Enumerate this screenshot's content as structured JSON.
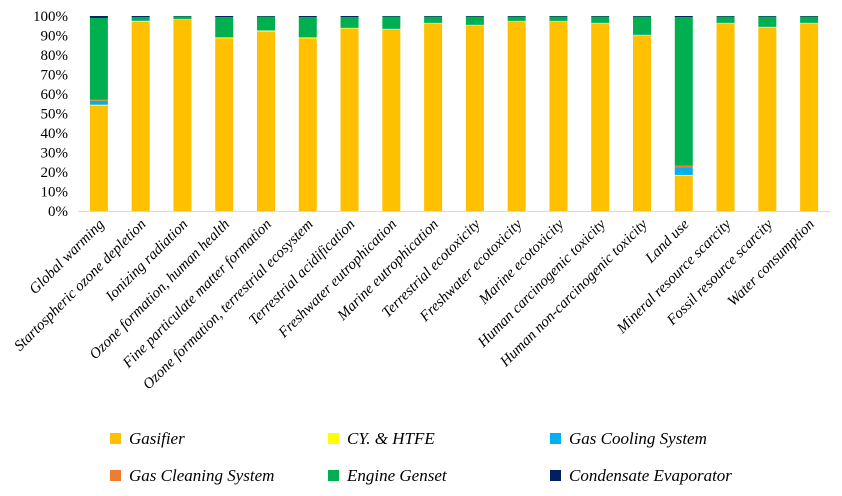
{
  "chart_data": {
    "type": "bar",
    "stacked": true,
    "percent": true,
    "categories": [
      "Global warming",
      "Startospheric ozone depletion",
      "Ionizing radiation",
      "Ozone formation, human health",
      "Fine particulate matter formation",
      "Ozone formation, terrestrial ecosystem",
      "Terrestrial acidification",
      "Freshwater eutrophication",
      "Marine eutrophication",
      "Terrestrial ecotoxicity",
      "Freshwater ecotoxicity",
      "Marine ecotoxicity",
      "Human carcinogenic toxicity",
      "Human non-carcinogenic toxicity",
      "Land use",
      "Mineral resource scarcity",
      "Fossil resource scarcity",
      "Water consumption"
    ],
    "series": [
      {
        "name": "Gasifier",
        "color": "#FFC000",
        "values": [
          54,
          97,
          98,
          88.5,
          92,
          88.5,
          93.5,
          93,
          96,
          95,
          97,
          97,
          96,
          90,
          18,
          96,
          94,
          96
        ]
      },
      {
        "name": "CY. & HTFE",
        "color": "#FFFF00",
        "values": [
          0.5,
          0.5,
          0.3,
          0.5,
          0.5,
          0.5,
          0.3,
          0.3,
          0.3,
          0.3,
          0.3,
          0.3,
          0.3,
          0.3,
          0.5,
          0.3,
          0.3,
          0.3
        ]
      },
      {
        "name": "Gas Cooling System",
        "color": "#00B0F0",
        "values": [
          2,
          0.2,
          0.2,
          0.2,
          0.2,
          0.2,
          0.2,
          0.2,
          0.2,
          0.2,
          0.2,
          0.2,
          0.2,
          0.2,
          4,
          0.2,
          0.2,
          0.2
        ]
      },
      {
        "name": "Gas Cleaning System",
        "color": "#ED7D31",
        "values": [
          0.5,
          0,
          0,
          0,
          0,
          0,
          0,
          0,
          0,
          0,
          0,
          0,
          0,
          0,
          0.8,
          0,
          0,
          0
        ]
      },
      {
        "name": "Engine Genset",
        "color": "#00B050",
        "values": [
          42,
          1.8,
          1.3,
          10.3,
          7,
          10.3,
          5.5,
          6.2,
          3.2,
          4.2,
          2.2,
          2.2,
          3.2,
          9.2,
          76.2,
          3.2,
          5.2,
          3.2
        ]
      },
      {
        "name": "Condensate Evaporator",
        "color": "#002060",
        "values": [
          1,
          0.5,
          0.2,
          0.5,
          0.3,
          0.5,
          0.5,
          0.3,
          0.3,
          0.3,
          0.3,
          0.3,
          0.3,
          0.3,
          0.5,
          0.3,
          0.3,
          0.3
        ]
      }
    ],
    "ylim": [
      0,
      100
    ],
    "yticks": [
      "0%",
      "10%",
      "20%",
      "30%",
      "40%",
      "50%",
      "60%",
      "70%",
      "80%",
      "90%",
      "100%"
    ],
    "ylabel": "",
    "xlabel": "",
    "title": "",
    "grid": false,
    "legend_position": "bottom"
  }
}
